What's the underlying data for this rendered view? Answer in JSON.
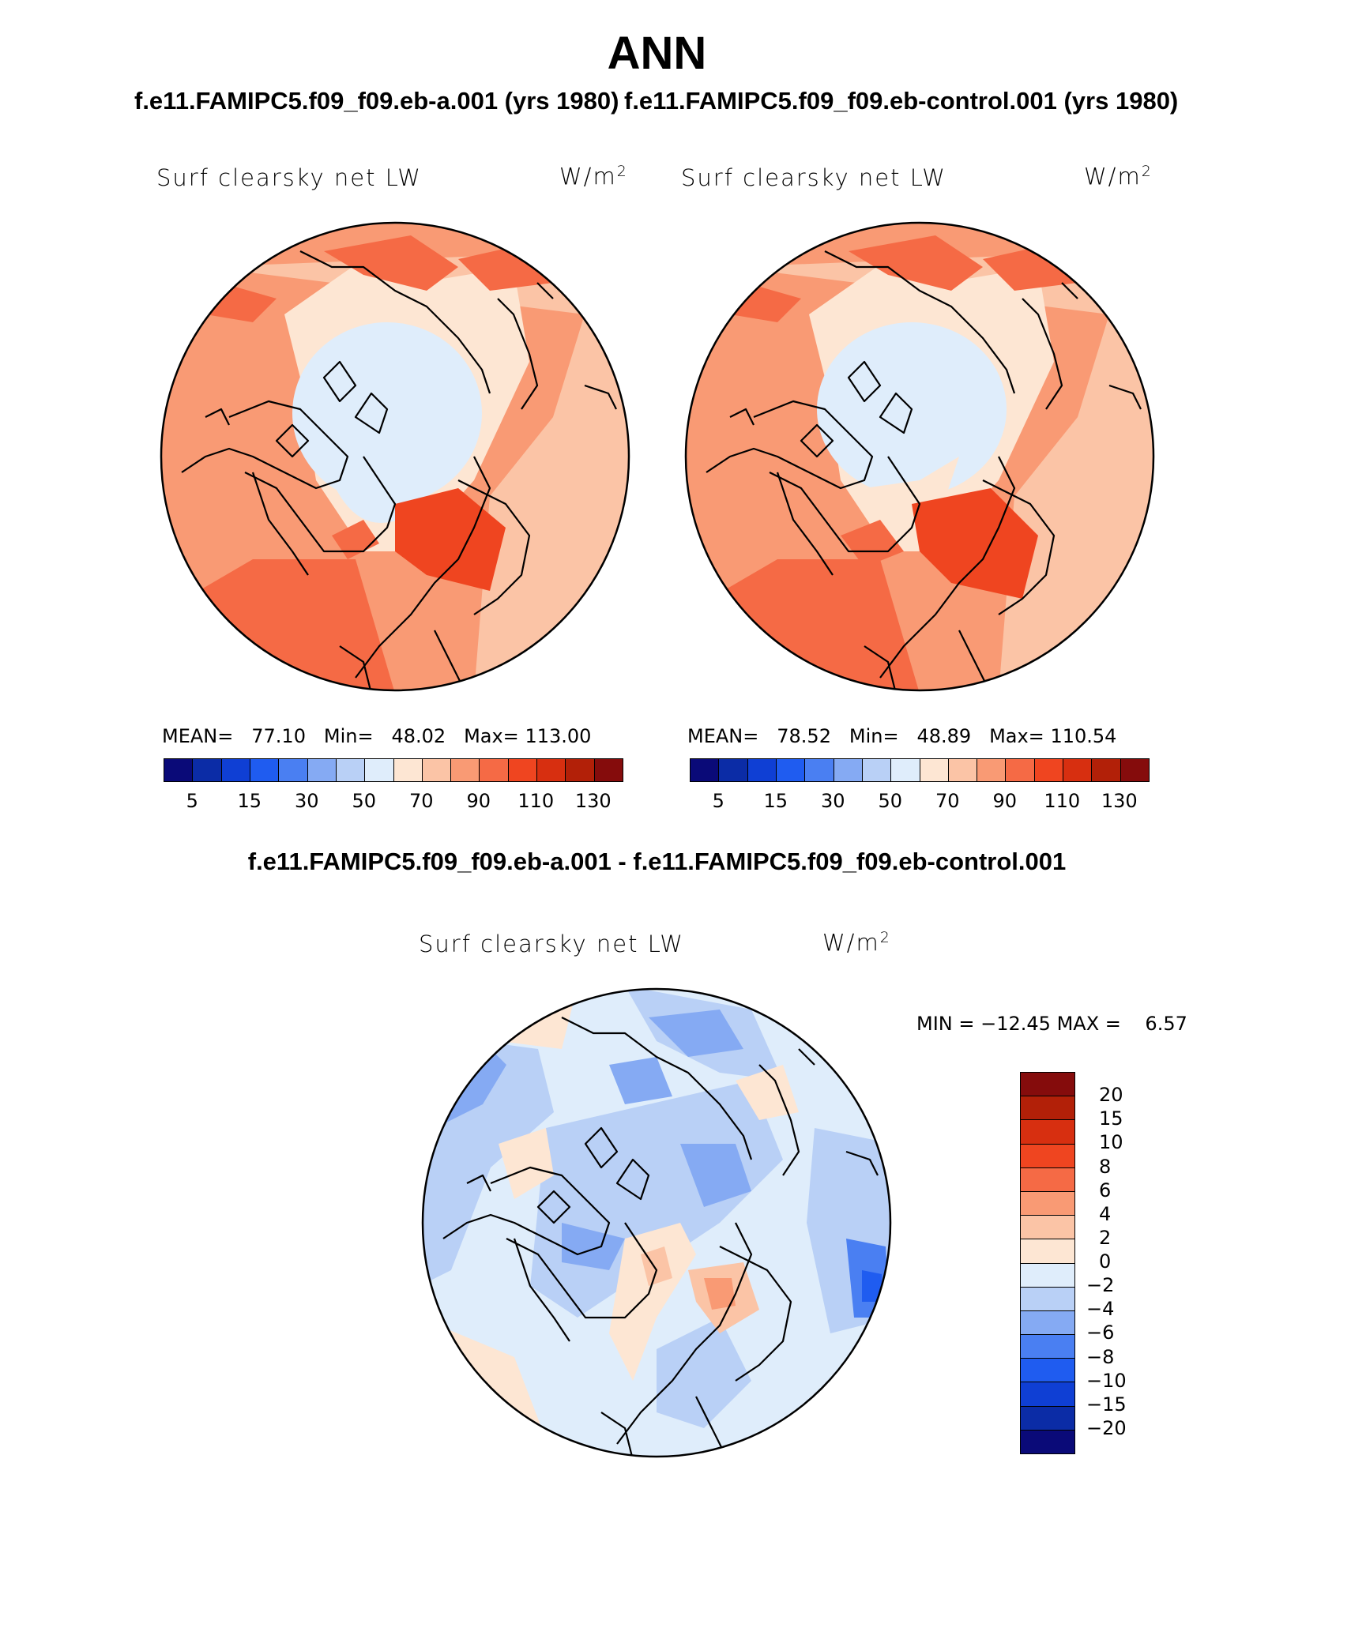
{
  "page": {
    "title": "ANN",
    "case1_title": "f.e11.FAMIPC5.f09_f09.eb-a.001 (yrs 1980)",
    "case2_title": "f.e11.FAMIPC5.f09_f09.eb-control.001 (yrs 1980)",
    "diff_title": "f.e11.FAMIPC5.f09_f09.eb-a.001 - f.e11.FAMIPC5.f09_f09.eb-control.001"
  },
  "panels": {
    "variable": "Surf clearsky net LW",
    "unit_base": "W/m",
    "unit_exp": "2",
    "case1": {
      "mean_label": "MEAN=",
      "mean": "77.10",
      "min_label": "Min=",
      "min": "48.02",
      "max_label": "Max=",
      "max": "113.00"
    },
    "case2": {
      "mean_label": "MEAN=",
      "mean": "78.52",
      "min_label": "Min=",
      "min": "48.89",
      "max_label": "Max=",
      "max": "110.54"
    },
    "diff": {
      "min_label": "MIN =",
      "min": "−12.45",
      "max_label": "MAX =",
      "max": "6.57"
    }
  },
  "colorbar": {
    "colors": [
      "#0a0a78",
      "#0b2ca6",
      "#0f3fd4",
      "#1f5cf0",
      "#4a7ff2",
      "#85aaf3",
      "#b9d0f6",
      "#dfedfb",
      "#fde6d3",
      "#fbc4a6",
      "#f99a74",
      "#f56a45",
      "#ef4520",
      "#d72f10",
      "#b22008",
      "#850c0c"
    ],
    "ticks": [
      "5",
      "15",
      "30",
      "50",
      "70",
      "90",
      "110",
      "130"
    ]
  },
  "diff_colorbar": {
    "colors": [
      "#850c0c",
      "#b22008",
      "#d72f10",
      "#ef4520",
      "#f56a45",
      "#f99a74",
      "#fbc4a6",
      "#fde6d3",
      "#dfedfb",
      "#b9d0f6",
      "#85aaf3",
      "#4a7ff2",
      "#1f5cf0",
      "#0f3fd4",
      "#0b2ca6",
      "#0a0a78"
    ],
    "ticks": [
      "20",
      "15",
      "10",
      "8",
      "6",
      "4",
      "2",
      "0",
      "−2",
      "−4",
      "−6",
      "−8",
      "−10",
      "−15",
      "−20"
    ]
  }
}
